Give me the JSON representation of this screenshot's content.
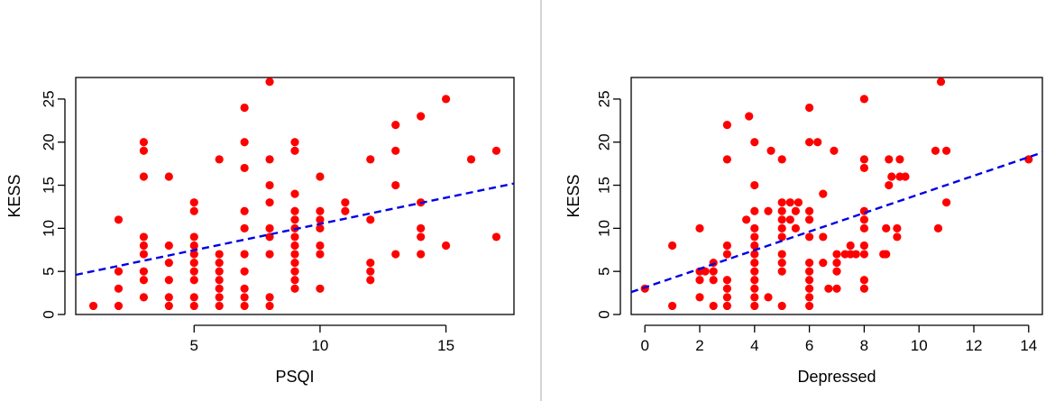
{
  "colors": {
    "points": "#ff0000",
    "trend": "#0000e6",
    "axes": "#000000",
    "divider": "#d4d4d4"
  },
  "chart_data": [
    {
      "type": "scatter",
      "xlabel": "PSQI",
      "ylabel": "KESS",
      "xlim": [
        0.3,
        17.7
      ],
      "ylim": [
        0,
        27.5
      ],
      "xticks": [
        5,
        10,
        15
      ],
      "yticks": [
        0,
        5,
        10,
        15,
        20,
        25
      ],
      "trend_line": {
        "style": "dashed",
        "points": [
          [
            0.3,
            4.6
          ],
          [
            17.7,
            15.2
          ]
        ]
      },
      "series": [
        {
          "points": [
            [
              1,
              1
            ],
            [
              2,
              1
            ],
            [
              2,
              3
            ],
            [
              2,
              5
            ],
            [
              2,
              11
            ],
            [
              3,
              2
            ],
            [
              3,
              4
            ],
            [
              3,
              5
            ],
            [
              3,
              7
            ],
            [
              3,
              8
            ],
            [
              3,
              9
            ],
            [
              3,
              16
            ],
            [
              3,
              19
            ],
            [
              3,
              20
            ],
            [
              4,
              1
            ],
            [
              4,
              2
            ],
            [
              4,
              4
            ],
            [
              4,
              6
            ],
            [
              4,
              8
            ],
            [
              4,
              16
            ],
            [
              5,
              1
            ],
            [
              5,
              2
            ],
            [
              5,
              4
            ],
            [
              5,
              5
            ],
            [
              5,
              6
            ],
            [
              5,
              7
            ],
            [
              5,
              8
            ],
            [
              5,
              9
            ],
            [
              5,
              12
            ],
            [
              5,
              13
            ],
            [
              6,
              1
            ],
            [
              6,
              2
            ],
            [
              6,
              3
            ],
            [
              6,
              4
            ],
            [
              6,
              5
            ],
            [
              6,
              6
            ],
            [
              6,
              7
            ],
            [
              6,
              18
            ],
            [
              7,
              1
            ],
            [
              7,
              2
            ],
            [
              7,
              3
            ],
            [
              7,
              5
            ],
            [
              7,
              7
            ],
            [
              7,
              10
            ],
            [
              7,
              12
            ],
            [
              7,
              17
            ],
            [
              7,
              20
            ],
            [
              7,
              24
            ],
            [
              8,
              1
            ],
            [
              8,
              2
            ],
            [
              8,
              7
            ],
            [
              8,
              9
            ],
            [
              8,
              10
            ],
            [
              8,
              13
            ],
            [
              8,
              15
            ],
            [
              8,
              18
            ],
            [
              8,
              27
            ],
            [
              9,
              3
            ],
            [
              9,
              4
            ],
            [
              9,
              5
            ],
            [
              9,
              6
            ],
            [
              9,
              7
            ],
            [
              9,
              8
            ],
            [
              9,
              9
            ],
            [
              9,
              10
            ],
            [
              9,
              11
            ],
            [
              9,
              12
            ],
            [
              9,
              14
            ],
            [
              9,
              19
            ],
            [
              9,
              20
            ],
            [
              10,
              3
            ],
            [
              10,
              7
            ],
            [
              10,
              8
            ],
            [
              10,
              10
            ],
            [
              10,
              11
            ],
            [
              10,
              12
            ],
            [
              10,
              16
            ],
            [
              11,
              12
            ],
            [
              11,
              13
            ],
            [
              12,
              4
            ],
            [
              12,
              5
            ],
            [
              12,
              6
            ],
            [
              12,
              11
            ],
            [
              12,
              18
            ],
            [
              13,
              7
            ],
            [
              13,
              15
            ],
            [
              13,
              19
            ],
            [
              13,
              22
            ],
            [
              14,
              7
            ],
            [
              14,
              9
            ],
            [
              14,
              10
            ],
            [
              14,
              13
            ],
            [
              14,
              23
            ],
            [
              15,
              8
            ],
            [
              15,
              25
            ],
            [
              16,
              18
            ],
            [
              17,
              9
            ],
            [
              17,
              19
            ]
          ]
        }
      ]
    },
    {
      "type": "scatter",
      "xlabel": "Depressed",
      "ylabel": "KESS",
      "xlim": [
        -0.5,
        14.5
      ],
      "ylim": [
        0,
        27.5
      ],
      "xticks": [
        0,
        2,
        4,
        6,
        8,
        10,
        12,
        14
      ],
      "yticks": [
        0,
        5,
        10,
        15,
        20,
        25
      ],
      "trend_line": {
        "style": "dashed",
        "points": [
          [
            -0.5,
            2.6
          ],
          [
            14.5,
            18.8
          ]
        ]
      },
      "series": [
        {
          "points": [
            [
              0,
              3
            ],
            [
              1,
              1
            ],
            [
              1,
              8
            ],
            [
              2,
              2
            ],
            [
              2,
              4
            ],
            [
              2,
              5
            ],
            [
              2,
              10
            ],
            [
              2.2,
              5
            ],
            [
              2.5,
              1
            ],
            [
              2.5,
              4
            ],
            [
              2.5,
              5
            ],
            [
              2.5,
              6
            ],
            [
              3,
              1
            ],
            [
              3,
              2
            ],
            [
              3,
              3
            ],
            [
              3,
              4
            ],
            [
              3,
              7
            ],
            [
              3,
              8
            ],
            [
              3,
              18
            ],
            [
              3,
              22
            ],
            [
              3.7,
              11
            ],
            [
              3.8,
              23
            ],
            [
              4,
              1
            ],
            [
              4,
              2
            ],
            [
              4,
              3
            ],
            [
              4,
              4
            ],
            [
              4,
              5
            ],
            [
              4,
              6
            ],
            [
              4,
              7
            ],
            [
              4,
              8
            ],
            [
              4,
              9
            ],
            [
              4,
              10
            ],
            [
              4,
              12
            ],
            [
              4,
              15
            ],
            [
              4,
              20
            ],
            [
              4.5,
              2
            ],
            [
              4.5,
              12
            ],
            [
              4.6,
              19
            ],
            [
              5,
              1
            ],
            [
              5,
              5
            ],
            [
              5,
              6
            ],
            [
              5,
              7
            ],
            [
              5,
              9
            ],
            [
              5,
              10
            ],
            [
              5,
              11
            ],
            [
              5,
              12
            ],
            [
              5,
              13
            ],
            [
              5,
              18
            ],
            [
              5.3,
              11
            ],
            [
              5.3,
              13
            ],
            [
              5.5,
              10
            ],
            [
              5.5,
              12
            ],
            [
              5.6,
              13
            ],
            [
              6,
              1
            ],
            [
              6,
              2
            ],
            [
              6,
              3
            ],
            [
              6,
              4
            ],
            [
              6,
              5
            ],
            [
              6,
              6
            ],
            [
              6,
              9
            ],
            [
              6,
              11
            ],
            [
              6,
              12
            ],
            [
              6,
              20
            ],
            [
              6,
              24
            ],
            [
              6.3,
              20
            ],
            [
              6.5,
              6
            ],
            [
              6.5,
              9
            ],
            [
              6.5,
              14
            ],
            [
              6.7,
              3
            ],
            [
              6.9,
              19
            ],
            [
              7,
              3
            ],
            [
              7,
              5
            ],
            [
              7,
              6
            ],
            [
              7,
              7
            ],
            [
              7.3,
              7
            ],
            [
              7.5,
              7
            ],
            [
              7.5,
              8
            ],
            [
              7.7,
              7
            ],
            [
              8,
              3
            ],
            [
              8,
              4
            ],
            [
              8,
              7
            ],
            [
              8,
              8
            ],
            [
              8,
              10
            ],
            [
              8,
              11
            ],
            [
              8,
              12
            ],
            [
              8,
              17
            ],
            [
              8,
              18
            ],
            [
              8,
              25
            ],
            [
              8.7,
              7
            ],
            [
              8.8,
              7
            ],
            [
              8.8,
              10
            ],
            [
              8.9,
              15
            ],
            [
              8.9,
              18
            ],
            [
              9,
              16
            ],
            [
              9.2,
              9
            ],
            [
              9.2,
              10
            ],
            [
              9.3,
              16
            ],
            [
              9.3,
              18
            ],
            [
              9.5,
              16
            ],
            [
              10.6,
              19
            ],
            [
              10.7,
              10
            ],
            [
              10.8,
              27
            ],
            [
              11,
              13
            ],
            [
              11,
              19
            ],
            [
              14,
              18
            ]
          ]
        }
      ]
    }
  ]
}
